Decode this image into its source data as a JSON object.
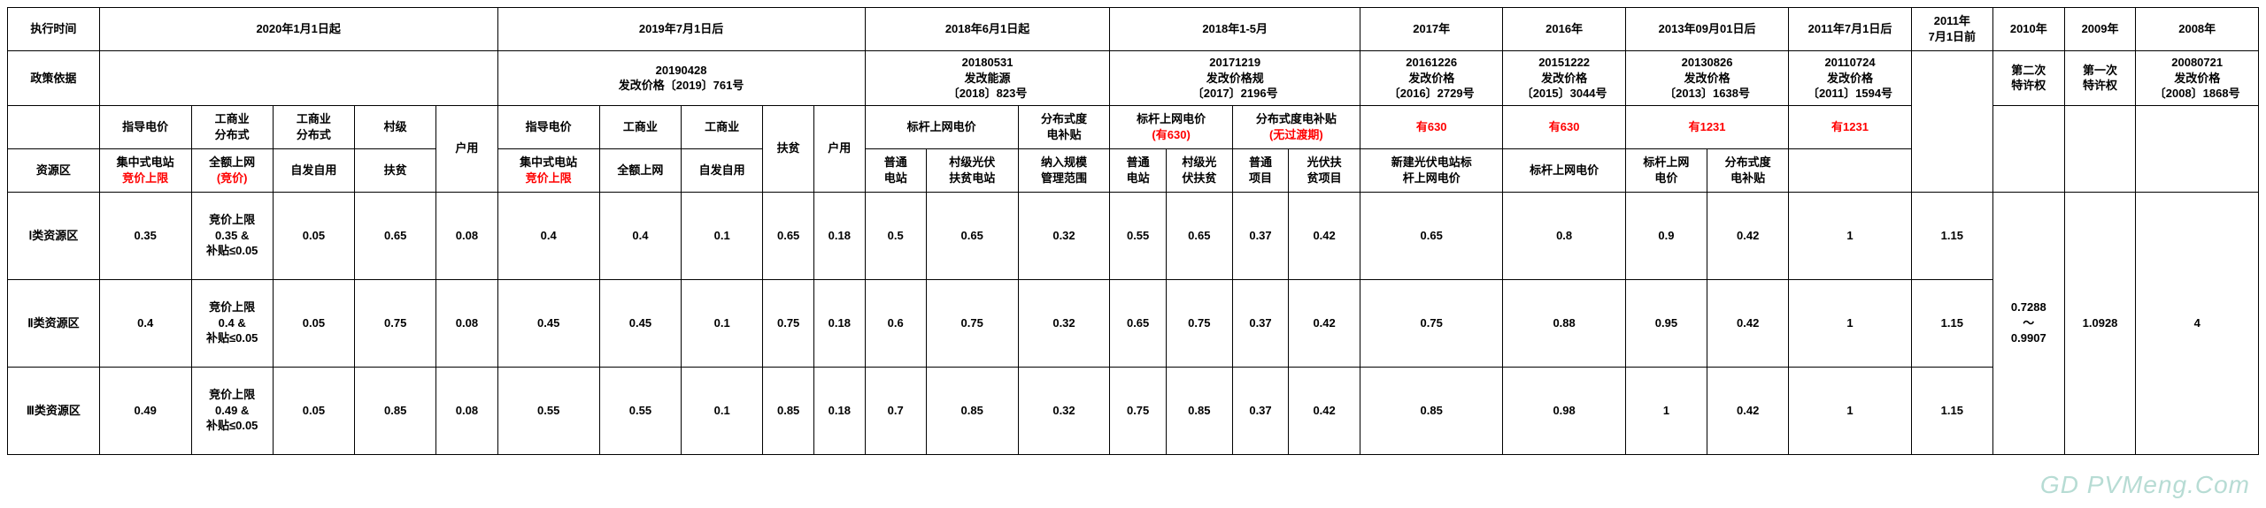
{
  "rowLabels": {
    "execTime": "执行时间",
    "policyBasis": "政策依据",
    "resourceTitle": "资源区",
    "zone1": "Ⅰ类资源区",
    "zone2": "Ⅱ类资源区",
    "zone3": "Ⅲ类资源区"
  },
  "periods": {
    "p2020": "2020年1月1日起",
    "p2019": "2019年7月1日后",
    "p2018b": "2018年6月1日起",
    "p2018a": "2018年1-5月",
    "p2017": "2017年",
    "p2016": "2016年",
    "p2013": "2013年09月01日后",
    "p2011b": "2011年7月1日后",
    "p2011a": "2011年\n7月1日前",
    "p2010": "2010年",
    "p2009": "2009年",
    "p2008": "2008年"
  },
  "basis": {
    "b2019": "20190428\n发改价格〔2019〕761号",
    "b2018b": "20180531\n发改能源\n〔2018〕823号",
    "b2018a": "20171219\n发改价格规\n〔2017〕2196号",
    "b2017": "20161226\n发改价格\n〔2016〕2729号",
    "b2016": "20151222\n发改价格\n〔2015〕3044号",
    "b2013": "20130826\n发改价格\n〔2013〕1638号",
    "b2011b": "20110724\n发改价格\n〔2011〕1594号",
    "b2010": "第二次\n特许权",
    "b2009": "第一次\n特许权",
    "b2008": "20080721\n发改价格\n〔2008〕1868号"
  },
  "sub1": {
    "s2020_guide": "指导电价",
    "s2020_icA": "工商业\n分布式",
    "s2020_icB": "工商业\n分布式",
    "s2020_village": "村级",
    "s2019_guide": "指导电价",
    "s2019_icA": "工商业",
    "s2019_icB": "工商业",
    "s2018b_bm": "标杆上网电价",
    "s2018b_dist": "分布式度\n电补贴",
    "s2018a_bm_pre": "标杆上网电价",
    "s2018a_bm_630": "(有630)",
    "s2018a_dist_pre": "分布式度电补贴",
    "s2018a_dist_no": "(无过渡期)",
    "s2017": "有630",
    "s2016": "有630",
    "s2013": "有1231",
    "s2011b": "有1231"
  },
  "sub2": {
    "s2020_central_l1": "集中式电站",
    "s2020_central_l2": "竞价上限",
    "s2020_full_l1": "全额上网",
    "s2020_full_l2": "(竞价)",
    "s2020_self": "自发自用",
    "s2020_fp": "扶贫",
    "s2020_hh": "户用",
    "s2019_central_l1": "集中式电站",
    "s2019_central_l2": "竞价上限",
    "s2019_full": "全额上网",
    "s2019_self": "自发自用",
    "s2019_fp": "扶贫",
    "s2019_hh": "户用",
    "s2018b_pt": "普通\n电站",
    "s2018b_vfp": "村级光伏\n扶贫电站",
    "s2018b_nr": "纳入规模\n管理范围",
    "s2018a_pt": "普通\n电站",
    "s2018a_vfp": "村级光\n伏扶贫",
    "s2018a_ptx": "普通\n项目",
    "s2018a_fpx": "光伏扶\n贫项目",
    "s2017_new": "新建光伏电站标\n杆上网电价",
    "s2016_bm": "标杆上网电价",
    "s2013_bm": "标杆上网\n电价",
    "s2013_dist": "分布式度\n电补贴"
  },
  "vals": {
    "z1": {
      "c2020_central": "0.35",
      "c2020_full": "竞价上限\n0.35 &\n补贴≤0.05",
      "c2020_self": "0.05",
      "c2020_fp": "0.65",
      "c2020_hh": "0.08",
      "c2019_central": "0.4",
      "c2019_full": "0.4",
      "c2019_self": "0.1",
      "c2019_fp": "0.65",
      "c2019_hh": "0.18",
      "c2018b_pt": "0.5",
      "c2018b_vfp": "0.65",
      "c2018b_nr": "0.32",
      "c2018a_pt": "0.55",
      "c2018a_vfp": "0.65",
      "c2018a_ptx": "0.37",
      "c2018a_fpx": "0.42",
      "c2017": "0.65",
      "c2016": "0.8",
      "c2013_bm": "0.9",
      "c2013_dist": "0.42",
      "c2011b": "1",
      "c2011a": "1.15"
    },
    "z2": {
      "c2020_central": "0.4",
      "c2020_full": "竞价上限\n0.4 &\n补贴≤0.05",
      "c2020_self": "0.05",
      "c2020_fp": "0.75",
      "c2020_hh": "0.08",
      "c2019_central": "0.45",
      "c2019_full": "0.45",
      "c2019_self": "0.1",
      "c2019_fp": "0.75",
      "c2019_hh": "0.18",
      "c2018b_pt": "0.6",
      "c2018b_vfp": "0.75",
      "c2018b_nr": "0.32",
      "c2018a_pt": "0.65",
      "c2018a_vfp": "0.75",
      "c2018a_ptx": "0.37",
      "c2018a_fpx": "0.42",
      "c2017": "0.75",
      "c2016": "0.88",
      "c2013_bm": "0.95",
      "c2013_dist": "0.42",
      "c2011b": "1",
      "c2011a": "1.15",
      "c2010": "0.7288\n～\n0.9907",
      "c2009": "1.0928",
      "c2008": "4"
    },
    "z3": {
      "c2020_central": "0.49",
      "c2020_full": "竞价上限\n0.49 &\n补贴≤0.05",
      "c2020_self": "0.05",
      "c2020_fp": "0.85",
      "c2020_hh": "0.08",
      "c2019_central": "0.55",
      "c2019_full": "0.55",
      "c2019_self": "0.1",
      "c2019_fp": "0.85",
      "c2019_hh": "0.18",
      "c2018b_pt": "0.7",
      "c2018b_vfp": "0.85",
      "c2018b_nr": "0.32",
      "c2018a_pt": "0.75",
      "c2018a_vfp": "0.85",
      "c2018a_ptx": "0.37",
      "c2018a_fpx": "0.42",
      "c2017": "0.85",
      "c2016": "0.98",
      "c2013_bm": "1",
      "c2013_dist": "0.42",
      "c2011b": "1",
      "c2011a": "1.15"
    }
  },
  "watermark": "GD PVMeng.Com",
  "colors": {
    "red": "#ff0000",
    "border": "#000000",
    "bg": "#ffffff"
  }
}
